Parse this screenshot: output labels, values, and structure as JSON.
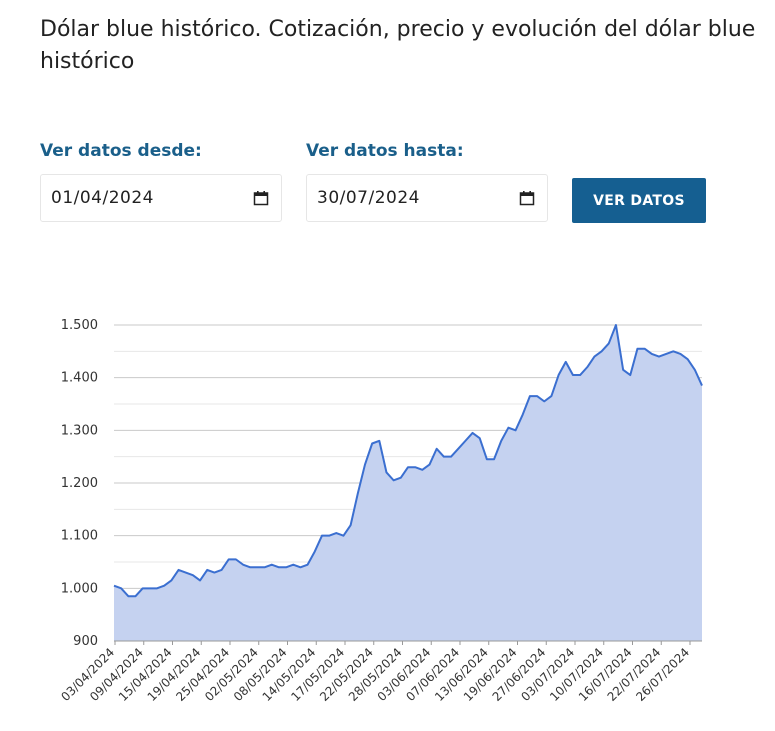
{
  "page": {
    "title": "Dólar blue histórico. Cotización, precio y evolución del dólar blue histórico"
  },
  "filters": {
    "from_label": "Ver datos desde:",
    "from_value": "01/04/2024",
    "to_label": "Ver datos hasta:",
    "to_value": "30/07/2024",
    "button_label": "VER DATOS"
  },
  "colors": {
    "accent": "#155f91",
    "label": "#1a5f8a",
    "line": "#3b6fd0",
    "fill": "#c5d2f0"
  },
  "chart_data": {
    "type": "area",
    "title": "",
    "xlabel": "",
    "ylabel": "",
    "ylim": [
      900,
      1500
    ],
    "yticks": [
      900,
      1000,
      1100,
      1200,
      1300,
      1400,
      1500
    ],
    "ytick_labels": [
      "900",
      "1.000",
      "1.100",
      "1.200",
      "1.300",
      "1.400",
      "1.500"
    ],
    "xtick_labels": [
      "03/04/2024",
      "09/04/2024",
      "15/04/2024",
      "19/04/2024",
      "25/04/2024",
      "02/05/2024",
      "08/05/2024",
      "14/05/2024",
      "17/05/2024",
      "22/05/2024",
      "28/05/2024",
      "03/06/2024",
      "07/06/2024",
      "13/06/2024",
      "19/06/2024",
      "27/06/2024",
      "03/07/2024",
      "10/07/2024",
      "16/07/2024",
      "22/07/2024",
      "26/07/2024"
    ],
    "values": [
      1005,
      1000,
      985,
      985,
      1000,
      1000,
      1000,
      1005,
      1015,
      1035,
      1030,
      1025,
      1015,
      1035,
      1030,
      1035,
      1055,
      1055,
      1045,
      1040,
      1040,
      1040,
      1045,
      1040,
      1040,
      1045,
      1040,
      1045,
      1070,
      1100,
      1100,
      1105,
      1100,
      1120,
      1180,
      1235,
      1275,
      1280,
      1220,
      1205,
      1210,
      1230,
      1230,
      1225,
      1235,
      1265,
      1250,
      1250,
      1265,
      1280,
      1295,
      1285,
      1245,
      1245,
      1280,
      1305,
      1300,
      1330,
      1365,
      1365,
      1355,
      1365,
      1405,
      1430,
      1405,
      1405,
      1420,
      1440,
      1450,
      1465,
      1500,
      1415,
      1405,
      1455,
      1455,
      1445,
      1440,
      1445,
      1450,
      1445,
      1435,
      1415,
      1385
    ]
  }
}
